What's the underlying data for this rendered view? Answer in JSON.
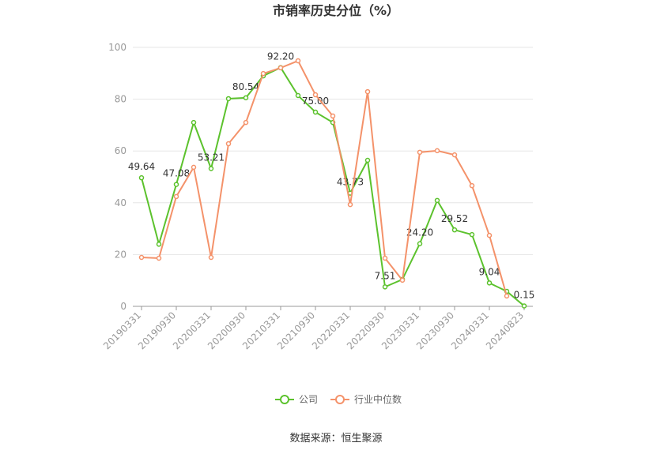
{
  "chart_data": {
    "type": "line",
    "title": "市销率历史分位（%）",
    "categories": [
      "20190331",
      null,
      "20190930",
      null,
      "20200331",
      null,
      "20200930",
      null,
      "20210331",
      null,
      "20210930",
      null,
      "20220331",
      null,
      "20220930",
      null,
      "20230331",
      null,
      "20230930",
      null,
      "20240331",
      null,
      "20240823"
    ],
    "series": [
      {
        "name": "公司",
        "color": "#5cc22d",
        "values": [
          49.64,
          24,
          47.08,
          71,
          53.21,
          80.2,
          80.54,
          89,
          92.2,
          81.4,
          75,
          71,
          43.73,
          56.4,
          7.51,
          10.4,
          24.2,
          40.9,
          29.52,
          27.7,
          9.04,
          5.8,
          0.15
        ],
        "value_labels": [
          "49.64",
          null,
          "47.08",
          null,
          "53.21",
          null,
          "80.54",
          null,
          "92.20",
          null,
          "75.00",
          null,
          "43.73",
          null,
          "7.51",
          null,
          "24.20",
          null,
          "29.52",
          null,
          "9.04",
          null,
          "0.15"
        ]
      },
      {
        "name": "行业中位数",
        "color": "#f4926a",
        "values": [
          18.9,
          18.6,
          42.4,
          53.7,
          18.9,
          62.8,
          71,
          89.9,
          92.1,
          94.8,
          81.7,
          73.5,
          39.3,
          82.9,
          18.6,
          10.1,
          59.5,
          60.1,
          58.5,
          46.6,
          27.4,
          4,
          null
        ]
      }
    ],
    "ylim": [
      0,
      100
    ],
    "yticks": [
      0,
      20,
      40,
      60,
      80,
      100
    ],
    "grid": true,
    "legend": "bottom",
    "source": "数据来源：恒生聚源"
  }
}
